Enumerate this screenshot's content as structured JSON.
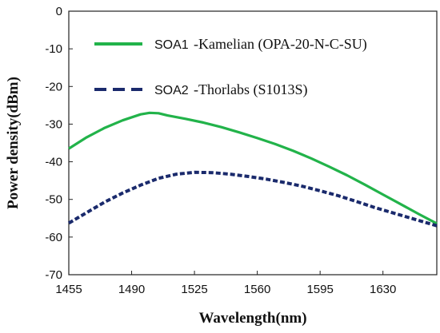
{
  "chart_data": {
    "type": "line",
    "title": "",
    "xlabel": "Wavelength(nm)",
    "ylabel": "Power density(dBm)",
    "xlim": [
      1455,
      1660
    ],
    "ylim": [
      -70,
      0
    ],
    "x_ticks": [
      1455,
      1490,
      1525,
      1560,
      1595,
      1630
    ],
    "y_ticks": [
      0,
      -10,
      -20,
      -30,
      -40,
      -50,
      -60,
      -70
    ],
    "grid": false,
    "legend_position": "top-left",
    "series": [
      {
        "name": "SOA1",
        "description": "-Kamelian (OPA-20-N-C-SU)",
        "color": "#22b34a",
        "style": "solid",
        "x": [
          1455,
          1465,
          1475,
          1485,
          1495,
          1500,
          1505,
          1510,
          1520,
          1530,
          1540,
          1550,
          1560,
          1570,
          1580,
          1590,
          1600,
          1610,
          1620,
          1630,
          1640,
          1650,
          1660
        ],
        "y": [
          -36.5,
          -33.5,
          -31,
          -29,
          -27.4,
          -27,
          -27.1,
          -27.7,
          -28.6,
          -29.6,
          -30.8,
          -32.2,
          -33.7,
          -35.3,
          -37.1,
          -39.1,
          -41.3,
          -43.6,
          -46.1,
          -48.7,
          -51.3,
          -53.9,
          -56.4
        ]
      },
      {
        "name": "SOA2",
        "description": "-Thorlabs (S1013S)",
        "color": "#1a2a6c",
        "style": "dashed",
        "x": [
          1455,
          1465,
          1475,
          1485,
          1495,
          1505,
          1515,
          1525,
          1535,
          1545,
          1555,
          1565,
          1575,
          1585,
          1595,
          1605,
          1615,
          1625,
          1635,
          1645,
          1660
        ],
        "y": [
          -56.3,
          -53.5,
          -50.7,
          -48.3,
          -46.2,
          -44.4,
          -43.3,
          -42.8,
          -42.9,
          -43.3,
          -43.9,
          -44.6,
          -45.5,
          -46.5,
          -47.7,
          -49,
          -50.5,
          -52.1,
          -53.5,
          -54.9,
          -57
        ]
      }
    ]
  }
}
